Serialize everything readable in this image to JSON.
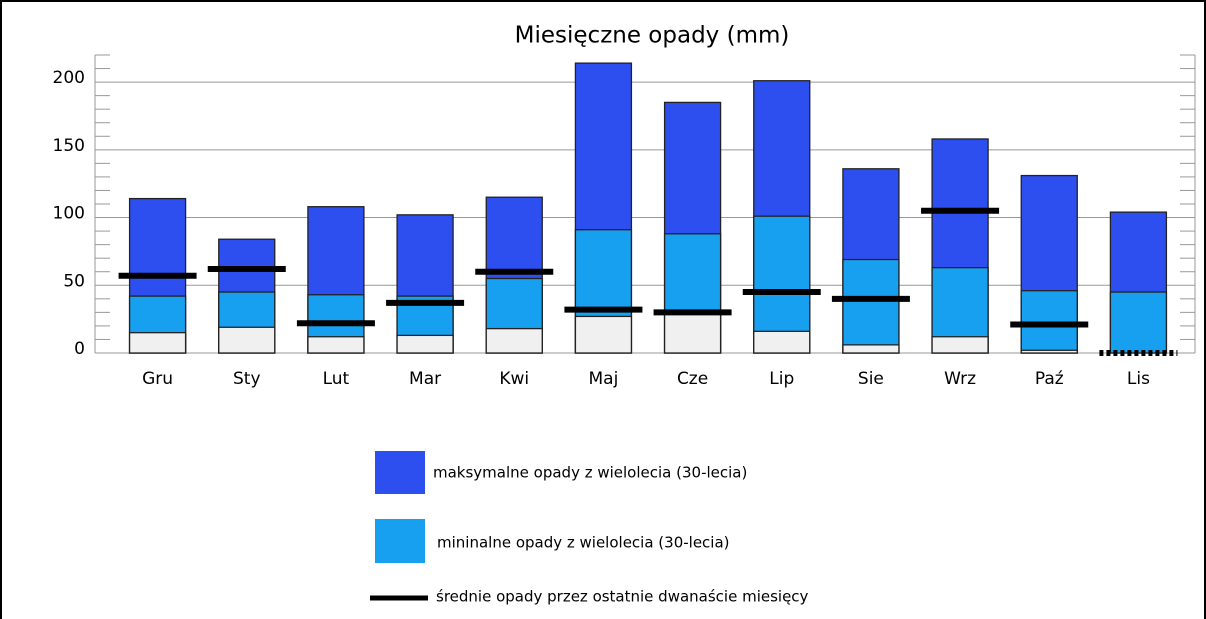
{
  "chart_data": {
    "type": "bar",
    "title": "Miesięczne opady (mm)",
    "categories": [
      "Gru",
      "Sty",
      "Lut",
      "Mar",
      "Kwi",
      "Maj",
      "Cze",
      "Lip",
      "Sie",
      "Wrz",
      "Paź",
      "Lis"
    ],
    "series": [
      {
        "name": "maksymalne opady z wielolecia (30-lecia)",
        "color": "#2e4ff0",
        "values": [
          114,
          84,
          108,
          102,
          115,
          214,
          185,
          201,
          136,
          158,
          131,
          104
        ]
      },
      {
        "name": "mininalne opady z wielolecia (30-lecia)",
        "color": "#18a0f0",
        "values": [
          42,
          45,
          43,
          42,
          55,
          91,
          88,
          101,
          69,
          63,
          46,
          45
        ]
      },
      {
        "color": "#f0f0f0",
        "values": [
          15,
          19,
          12,
          13,
          18,
          27,
          30,
          16,
          6,
          12,
          2,
          0
        ]
      },
      {
        "name": "średnie opady przez ostatnie dwanaście miesięcy",
        "color": "#000000",
        "values": [
          57,
          62,
          22,
          37,
          60,
          32,
          30,
          45,
          40,
          105,
          21,
          0
        ],
        "dotted_last": true
      }
    ],
    "ylim": [
      0,
      220
    ],
    "yticks": [
      0,
      50,
      100,
      150,
      200
    ],
    "minor_yticks": [
      10,
      20,
      30,
      40,
      60,
      70,
      80,
      90,
      110,
      120,
      130,
      140,
      160,
      170,
      180,
      190,
      210,
      220
    ],
    "grid": true
  }
}
